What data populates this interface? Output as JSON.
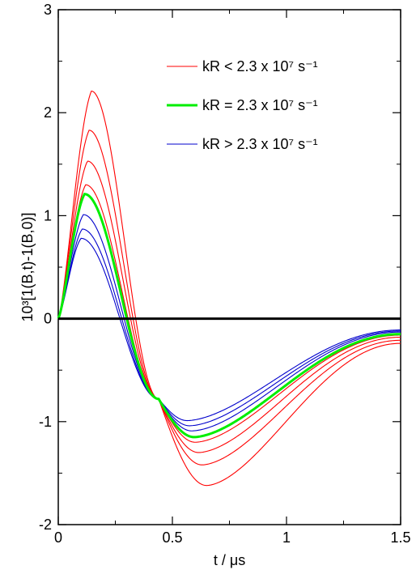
{
  "chart_data": {
    "type": "line",
    "xlabel": "t / μs",
    "ylabel": "10³[1(B,t)-1(B,0)]",
    "xlim": [
      0,
      1.5
    ],
    "ylim": [
      -2,
      3
    ],
    "x_ticks": [
      0,
      0.5,
      1,
      1.5
    ],
    "x_tick_labels": [
      "0",
      "0.5",
      "1",
      "1.5"
    ],
    "y_ticks": [
      -2,
      -1,
      0,
      1,
      2,
      3
    ],
    "y_tick_labels": [
      "-2",
      "-1",
      "0",
      "1",
      "2",
      "3"
    ],
    "grid": false,
    "legend_position": "top-right",
    "legend": [
      {
        "label": "kR < 2.3 x 10⁷ s⁻¹",
        "color": "#ff0000",
        "width": "thin"
      },
      {
        "label": "kR = 2.3 x 10⁷ s⁻¹",
        "color": "#00ee00",
        "width": "thick"
      },
      {
        "label": "kR > 2.3 x 10⁷ s⁻¹",
        "color": "#0000cc",
        "width": "thin"
      }
    ],
    "colors": {
      "low": "#ff0000",
      "critical": "#00ee00",
      "high": "#0000cc",
      "zero_line": "#000000"
    },
    "series": [
      {
        "group": "low",
        "peak": 2.21,
        "min": -1.62,
        "t_peak": 0.145,
        "t_min": 0.65,
        "t_end_value": -0.24
      },
      {
        "group": "low",
        "peak": 1.83,
        "min": -1.42,
        "t_peak": 0.135,
        "t_min": 0.63,
        "t_end_value": -0.21
      },
      {
        "group": "low",
        "peak": 1.53,
        "min": -1.3,
        "t_peak": 0.128,
        "t_min": 0.615,
        "t_end_value": -0.18
      },
      {
        "group": "low",
        "peak": 1.3,
        "min": -1.2,
        "t_peak": 0.12,
        "t_min": 0.6,
        "t_end_value": -0.16
      },
      {
        "group": "critical",
        "peak": 1.21,
        "min": -1.15,
        "t_peak": 0.115,
        "t_min": 0.595,
        "t_end_value": -0.15
      },
      {
        "group": "high",
        "peak": 1.01,
        "min": -1.09,
        "t_peak": 0.11,
        "t_min": 0.585,
        "t_end_value": -0.13
      },
      {
        "group": "high",
        "peak": 0.87,
        "min": -1.04,
        "t_peak": 0.105,
        "t_min": 0.575,
        "t_end_value": -0.12
      },
      {
        "group": "high",
        "peak": 0.78,
        "min": -0.99,
        "t_peak": 0.1,
        "t_min": 0.565,
        "t_end_value": -0.11
      }
    ],
    "crossing_point": {
      "t": 0.44,
      "y": -0.78
    }
  }
}
